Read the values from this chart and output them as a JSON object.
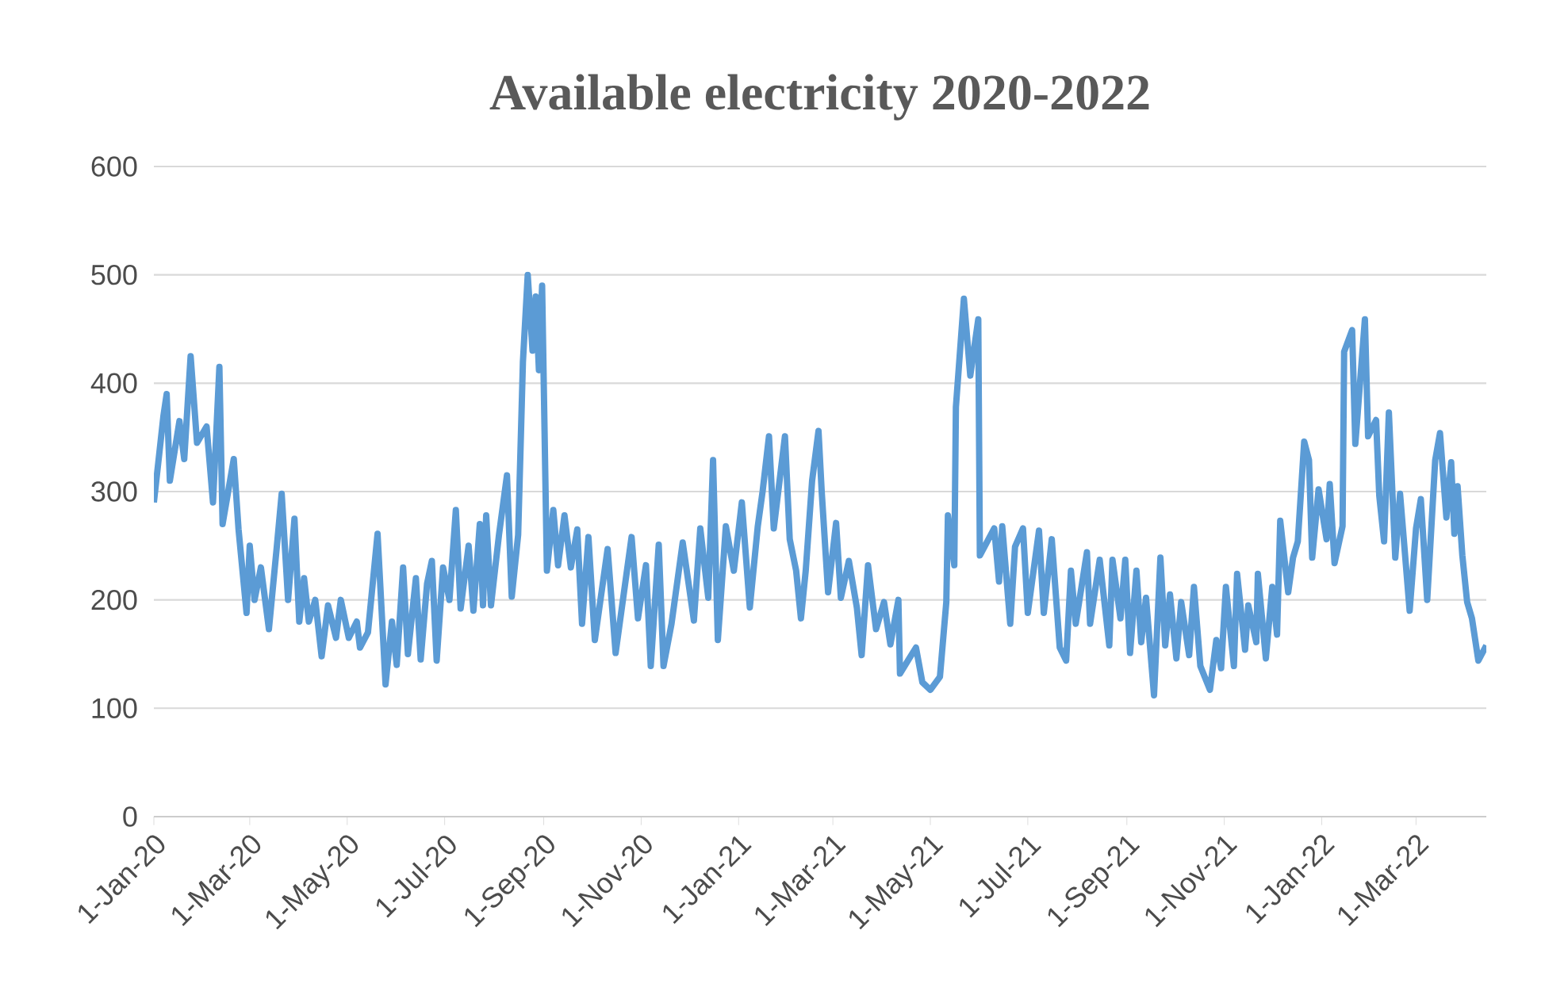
{
  "chart_data": {
    "type": "line",
    "title": "Available electricity 2020-2022",
    "x": [
      "2020-01-01",
      "2020-01-07",
      "2020-01-09",
      "2020-01-11",
      "2020-01-17",
      "2020-01-20",
      "2020-01-24",
      "2020-01-28",
      "2020-02-03",
      "2020-02-07",
      "2020-02-11",
      "2020-02-13",
      "2020-02-20",
      "2020-02-23",
      "2020-02-28",
      "2020-03-01",
      "2020-03-04",
      "2020-03-08",
      "2020-03-13",
      "2020-03-18",
      "2020-03-21",
      "2020-03-25",
      "2020-03-29",
      "2020-04-01",
      "2020-04-04",
      "2020-04-07",
      "2020-04-11",
      "2020-04-15",
      "2020-04-19",
      "2020-04-24",
      "2020-04-27",
      "2020-05-02",
      "2020-05-07",
      "2020-05-09",
      "2020-05-14",
      "2020-05-20",
      "2020-05-25",
      "2020-05-29",
      "2020-06-01",
      "2020-06-05",
      "2020-06-08",
      "2020-06-13",
      "2020-06-16",
      "2020-06-20",
      "2020-06-23",
      "2020-06-26",
      "2020-06-30",
      "2020-07-04",
      "2020-07-08",
      "2020-07-11",
      "2020-07-16",
      "2020-07-19",
      "2020-07-23",
      "2020-07-25",
      "2020-07-27",
      "2020-07-30",
      "2020-08-04",
      "2020-08-09",
      "2020-08-12",
      "2020-08-16",
      "2020-08-19",
      "2020-08-22",
      "2020-08-25",
      "2020-08-27",
      "2020-08-29",
      "2020-08-31",
      "2020-09-03",
      "2020-09-07",
      "2020-09-10",
      "2020-09-14",
      "2020-09-18",
      "2020-09-22",
      "2020-09-25",
      "2020-09-29",
      "2020-10-03",
      "2020-10-11",
      "2020-10-16",
      "2020-10-26",
      "2020-10-30",
      "2020-11-04",
      "2020-11-07",
      "2020-11-12",
      "2020-11-15",
      "2020-11-20",
      "2020-11-27",
      "2020-12-04",
      "2020-12-08",
      "2020-12-13",
      "2020-12-16",
      "2020-12-19",
      "2020-12-24",
      "2020-12-29",
      "2021-01-03",
      "2021-01-08",
      "2021-01-13",
      "2021-01-16",
      "2021-01-20",
      "2021-01-23",
      "2021-01-30",
      "2021-02-02",
      "2021-02-06",
      "2021-02-09",
      "2021-02-12",
      "2021-02-16",
      "2021-02-20",
      "2021-02-22",
      "2021-02-26",
      "2021-03-03",
      "2021-03-06",
      "2021-03-11",
      "2021-03-16",
      "2021-03-19",
      "2021-03-23",
      "2021-03-28",
      "2021-04-02",
      "2021-04-06",
      "2021-04-11",
      "2021-04-12",
      "2021-04-17",
      "2021-04-22",
      "2021-04-26",
      "2021-05-01",
      "2021-05-07",
      "2021-05-11",
      "2021-05-12",
      "2021-05-16",
      "2021-05-17",
      "2021-05-22",
      "2021-05-26",
      "2021-05-31",
      "2021-06-01",
      "2021-06-10",
      "2021-06-13",
      "2021-06-15",
      "2021-06-20",
      "2021-06-23",
      "2021-06-28",
      "2021-07-01",
      "2021-07-08",
      "2021-07-11",
      "2021-07-16",
      "2021-07-21",
      "2021-07-25",
      "2021-07-28",
      "2021-07-31",
      "2021-08-07",
      "2021-08-09",
      "2021-08-15",
      "2021-08-21",
      "2021-08-23",
      "2021-08-28",
      "2021-08-31",
      "2021-09-03",
      "2021-09-07",
      "2021-09-10",
      "2021-09-13",
      "2021-09-18",
      "2021-09-22",
      "2021-09-25",
      "2021-09-28",
      "2021-10-02",
      "2021-10-05",
      "2021-10-10",
      "2021-10-13",
      "2021-10-17",
      "2021-10-23",
      "2021-10-27",
      "2021-10-30",
      "2021-11-02",
      "2021-11-07",
      "2021-11-09",
      "2021-11-14",
      "2021-11-16",
      "2021-11-21",
      "2021-11-22",
      "2021-11-27",
      "2021-12-01",
      "2021-12-04",
      "2021-12-06",
      "2021-12-11",
      "2021-12-14",
      "2021-12-17",
      "2021-12-21",
      "2021-12-24",
      "2021-12-26",
      "2021-12-30",
      "2022-01-04",
      "2022-01-06",
      "2022-01-09",
      "2022-01-14",
      "2022-01-15",
      "2022-01-20",
      "2022-01-22",
      "2022-01-28",
      "2022-01-30",
      "2022-02-04",
      "2022-02-06",
      "2022-02-09",
      "2022-02-12",
      "2022-02-16",
      "2022-02-19",
      "2022-02-25",
      "2022-03-01",
      "2022-03-04",
      "2022-03-08",
      "2022-03-13",
      "2022-03-16",
      "2022-03-20",
      "2022-03-23",
      "2022-03-25",
      "2022-03-27",
      "2022-03-30",
      "2022-04-02",
      "2022-04-05",
      "2022-04-09",
      "2022-04-14"
    ],
    "values": [
      290,
      370,
      390,
      310,
      365,
      330,
      425,
      345,
      360,
      290,
      415,
      270,
      330,
      265,
      188,
      250,
      200,
      230,
      173,
      250,
      298,
      200,
      275,
      180,
      220,
      180,
      200,
      148,
      195,
      165,
      200,
      165,
      180,
      156,
      170,
      261,
      122,
      180,
      140,
      230,
      150,
      220,
      145,
      215,
      236,
      144,
      230,
      200,
      283,
      192,
      250,
      190,
      270,
      195,
      278,
      195,
      260,
      315,
      203,
      260,
      420,
      500,
      430,
      480,
      412,
      490,
      227,
      283,
      232,
      278,
      230,
      265,
      178,
      258,
      163,
      247,
      151,
      258,
      183,
      232,
      139,
      251,
      139,
      178,
      253,
      181,
      266,
      202,
      329,
      163,
      268,
      227,
      290,
      193,
      268,
      300,
      351,
      266,
      351,
      256,
      227,
      183,
      227,
      310,
      356,
      300,
      207,
      271,
      202,
      236,
      193,
      149,
      232,
      173,
      198,
      159,
      200,
      132,
      144,
      156,
      124,
      117,
      129,
      198,
      278,
      232,
      378,
      478,
      407,
      459,
      241,
      266,
      217,
      268,
      178,
      249,
      266,
      188,
      264,
      188,
      256,
      156,
      144,
      227,
      178,
      244,
      178,
      237,
      158,
      237,
      183,
      237,
      151,
      227,
      161,
      202,
      112,
      239,
      158,
      205,
      146,
      198,
      149,
      212,
      139,
      117,
      163,
      137,
      212,
      139,
      224,
      154,
      195,
      161,
      224,
      146,
      212,
      168,
      273,
      207,
      239,
      254,
      346,
      329,
      239,
      302,
      256,
      307,
      234,
      268,
      429,
      449,
      344,
      459,
      351,
      366,
      296,
      254,
      373,
      239,
      298,
      190,
      266,
      293,
      200,
      329,
      354,
      276,
      327,
      261,
      305,
      241,
      198,
      183,
      144,
      158
    ],
    "color": "#5b9bd5",
    "xlim": [
      "2020-01-01",
      "2022-04-14"
    ],
    "xticks": [
      {
        "value": "2020-01-01",
        "label": "1-Jan-20"
      },
      {
        "value": "2020-03-01",
        "label": "1-Mar-20"
      },
      {
        "value": "2020-05-01",
        "label": "1-May-20"
      },
      {
        "value": "2020-07-01",
        "label": "1-Jul-20"
      },
      {
        "value": "2020-09-01",
        "label": "1-Sep-20"
      },
      {
        "value": "2020-11-01",
        "label": "1-Nov-20"
      },
      {
        "value": "2021-01-01",
        "label": "1-Jan-21"
      },
      {
        "value": "2021-03-01",
        "label": "1-Mar-21"
      },
      {
        "value": "2021-05-01",
        "label": "1-May-21"
      },
      {
        "value": "2021-07-01",
        "label": "1-Jul-21"
      },
      {
        "value": "2021-09-01",
        "label": "1-Sep-21"
      },
      {
        "value": "2021-11-01",
        "label": "1-Nov-21"
      },
      {
        "value": "2022-01-01",
        "label": "1-Jan-22"
      },
      {
        "value": "2022-03-01",
        "label": "1-Mar-22"
      }
    ],
    "ylim": [
      0,
      600
    ],
    "yticks": [
      0,
      100,
      200,
      300,
      400,
      500,
      600
    ],
    "grid": "y",
    "marker": "none",
    "line_style": "solid"
  }
}
